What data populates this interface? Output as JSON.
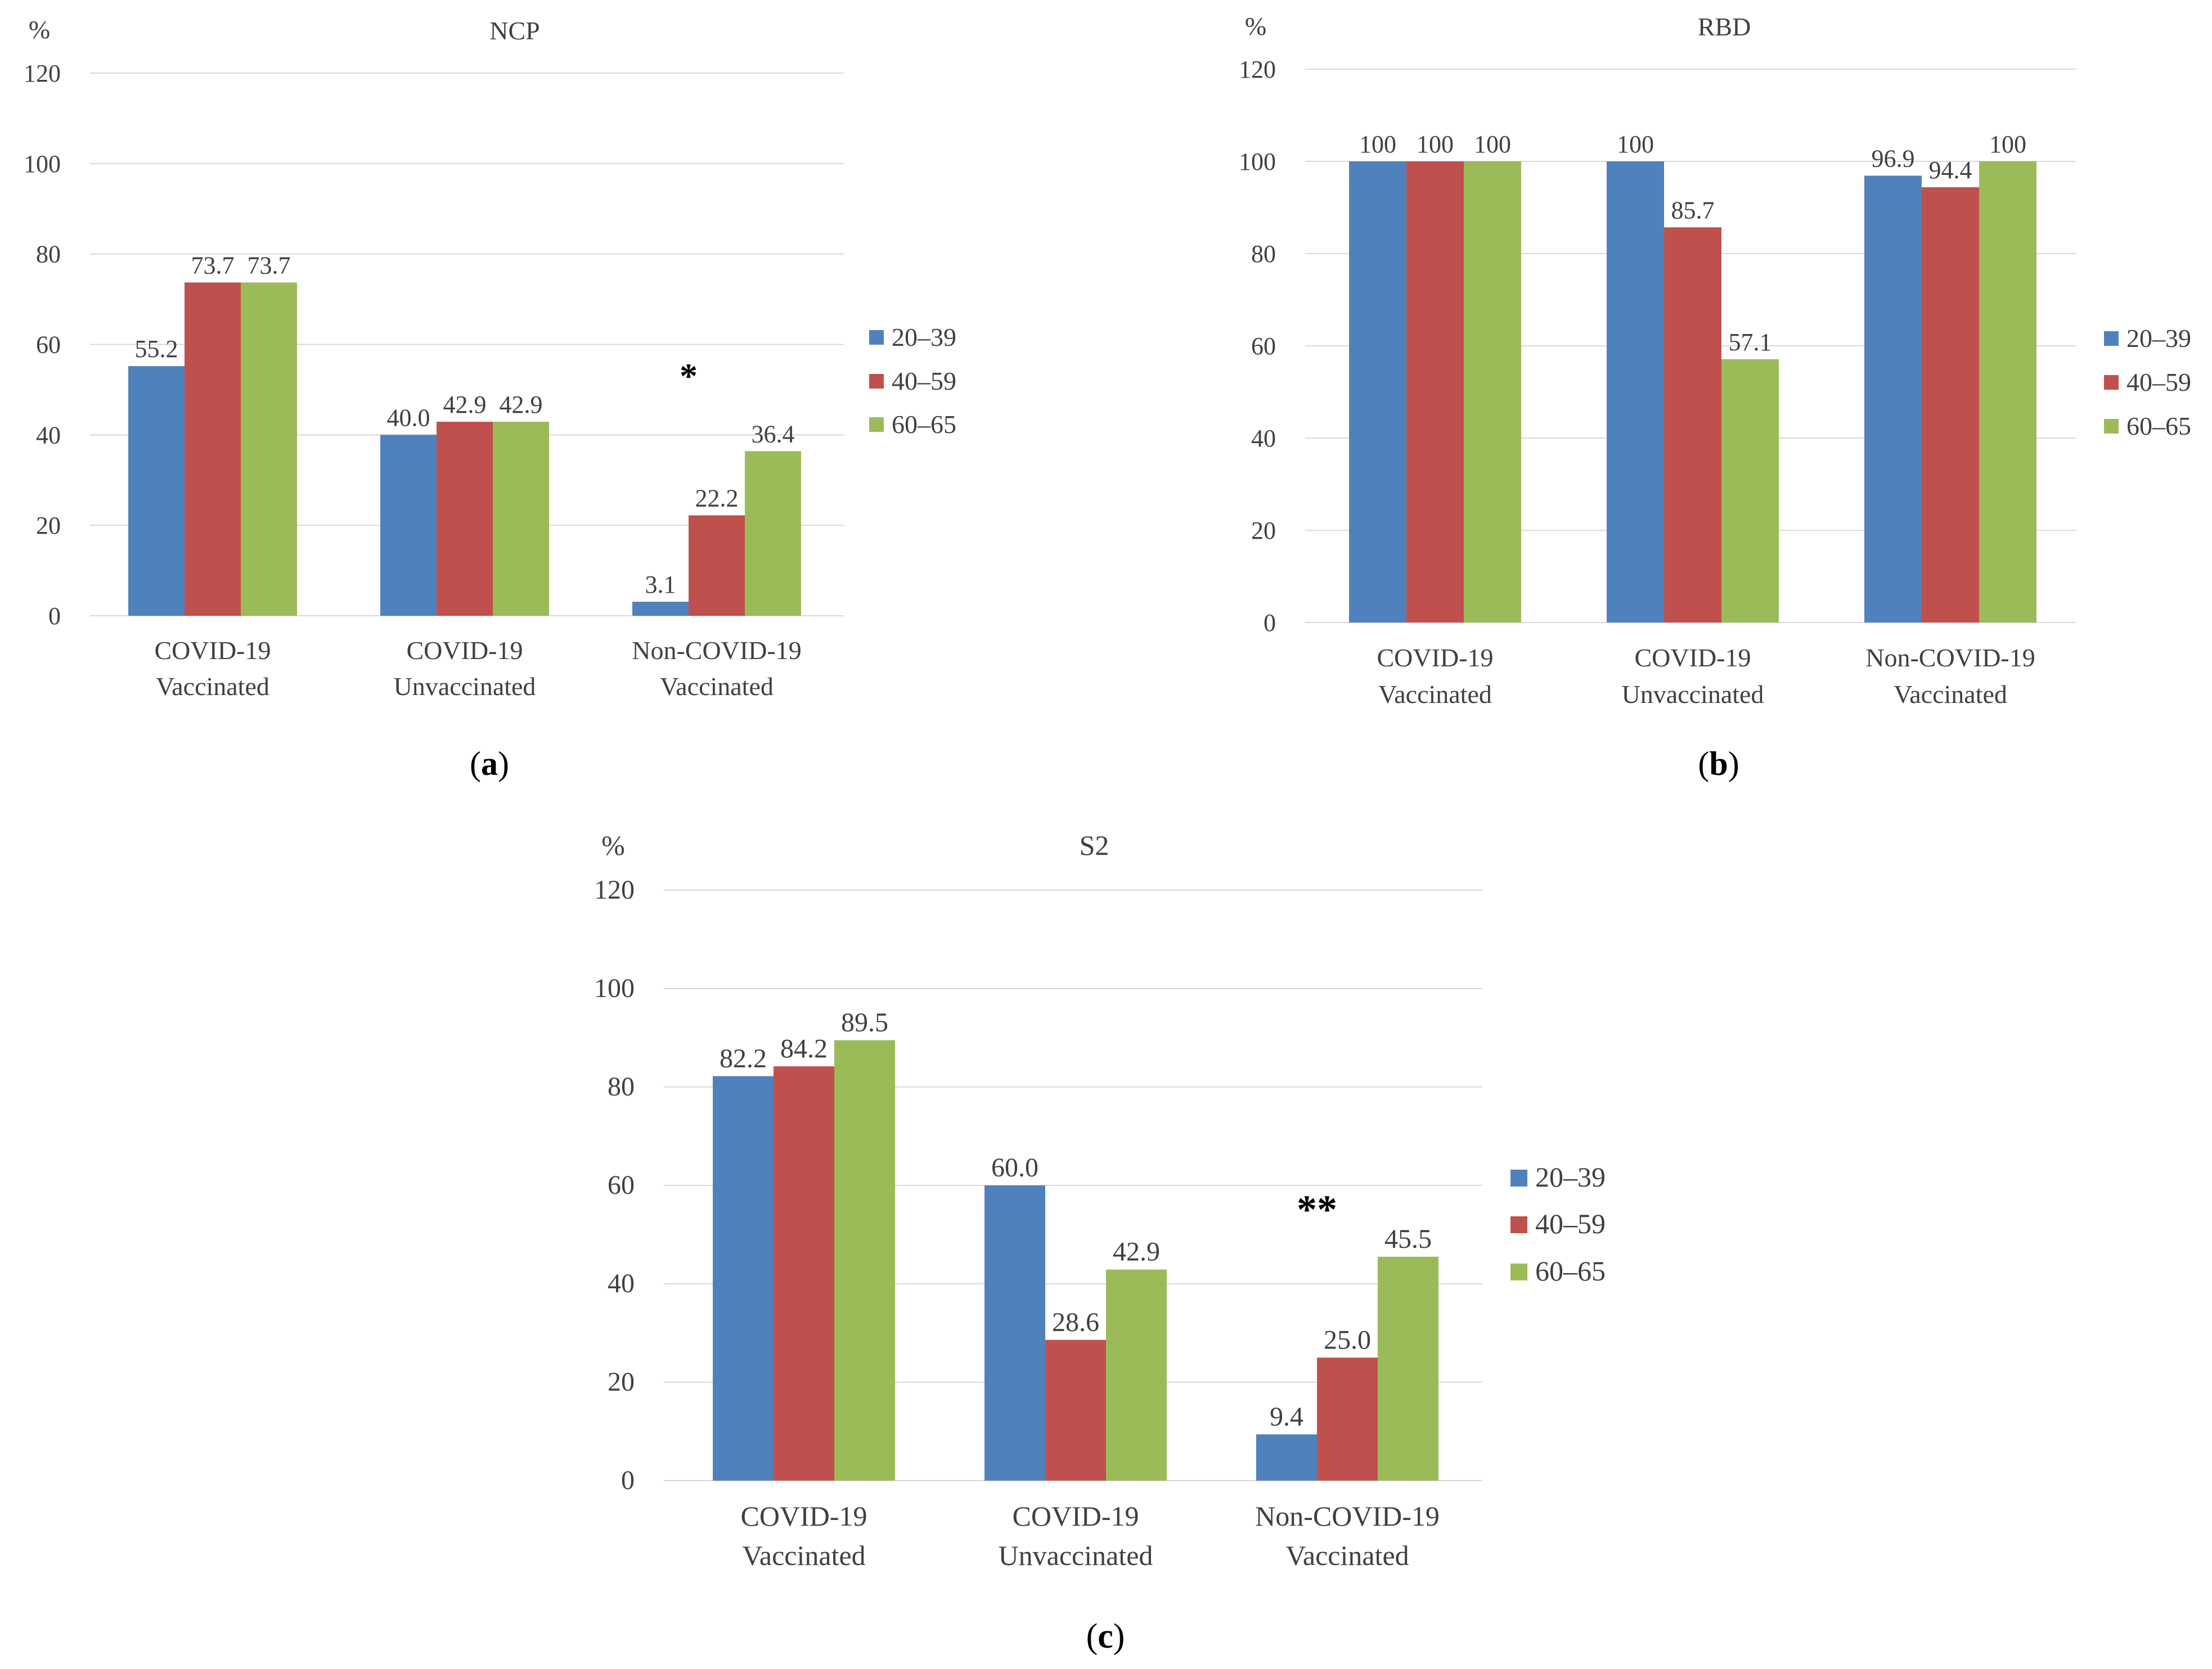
{
  "colors": {
    "s1": "#4f81bd",
    "s2": "#c0504d",
    "s3": "#9bbb59",
    "grid": "#d9d9d9",
    "text": "#404040"
  },
  "chart_data": [
    {
      "type": "bar",
      "panel_label": "a",
      "title": "NCP",
      "ylabel": "%",
      "ylim": [
        0,
        120
      ],
      "yticks": [
        "0",
        "20",
        "40",
        "60",
        "80",
        "100",
        "120"
      ],
      "categories": [
        [
          "COVID-19",
          "Vaccinated"
        ],
        [
          "COVID-19",
          "Unvaccinated"
        ],
        [
          "Non-COVID-19",
          "Vaccinated"
        ]
      ],
      "series": [
        {
          "name": "20–39",
          "values": [
            55.2,
            40.0,
            3.1
          ],
          "labels": [
            "55.2",
            "40.0",
            "3.1"
          ]
        },
        {
          "name": "40–59",
          "values": [
            73.7,
            42.9,
            22.2
          ],
          "labels": [
            "73.7",
            "42.9",
            "22.2"
          ]
        },
        {
          "name": "60–65",
          "values": [
            73.7,
            42.9,
            36.4
          ],
          "labels": [
            "73.7",
            "42.9",
            "36.4"
          ]
        }
      ],
      "annotations": [
        {
          "text": "*",
          "category": 2
        }
      ],
      "legend_position": "right"
    },
    {
      "type": "bar",
      "panel_label": "b",
      "title": "RBD",
      "ylabel": "%",
      "ylim": [
        0,
        120
      ],
      "yticks": [
        "0",
        "20",
        "40",
        "60",
        "80",
        "100",
        "120"
      ],
      "categories": [
        [
          "COVID-19",
          "Vaccinated"
        ],
        [
          "COVID-19",
          "Unvaccinated"
        ],
        [
          "Non-COVID-19",
          "Vaccinated"
        ]
      ],
      "series": [
        {
          "name": "20–39",
          "values": [
            100,
            100,
            96.9
          ],
          "labels": [
            "100",
            "100",
            "96.9"
          ]
        },
        {
          "name": "40–59",
          "values": [
            100,
            85.7,
            94.4
          ],
          "labels": [
            "100",
            "85.7",
            "94.4"
          ]
        },
        {
          "name": "60–65",
          "values": [
            100,
            57.1,
            100
          ],
          "labels": [
            "100",
            "57.1",
            "100"
          ]
        }
      ],
      "annotations": [],
      "legend_position": "right"
    },
    {
      "type": "bar",
      "panel_label": "c",
      "title": "S2",
      "ylabel": "%",
      "ylim": [
        0,
        120
      ],
      "yticks": [
        "0",
        "20",
        "40",
        "60",
        "80",
        "100",
        "120"
      ],
      "categories": [
        [
          "COVID-19",
          "Vaccinated"
        ],
        [
          "COVID-19",
          "Unvaccinated"
        ],
        [
          "Non-COVID-19",
          "Vaccinated"
        ]
      ],
      "series": [
        {
          "name": "20–39",
          "values": [
            82.2,
            60.0,
            9.4
          ],
          "labels": [
            "82.2",
            "60.0",
            "9.4"
          ]
        },
        {
          "name": "40–59",
          "values": [
            84.2,
            28.6,
            25.0
          ],
          "labels": [
            "84.2",
            "28.6",
            "25.0"
          ]
        },
        {
          "name": "60–65",
          "values": [
            89.5,
            42.9,
            45.5
          ],
          "labels": [
            "89.5",
            "42.9",
            "45.5"
          ]
        }
      ],
      "annotations": [
        {
          "text": "**",
          "category": 2
        }
      ],
      "legend_position": "right"
    }
  ]
}
